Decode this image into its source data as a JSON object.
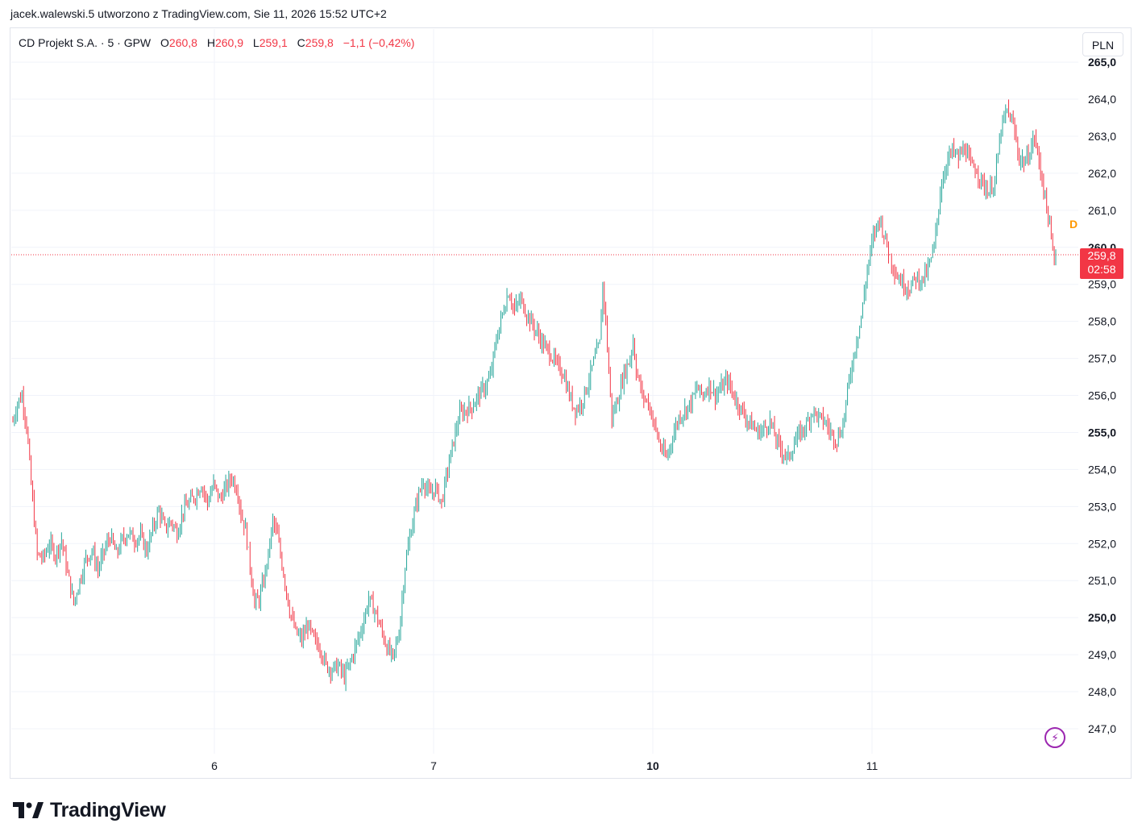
{
  "header": {
    "text": "jacek.walewski.5 utworzono z TradingView.com, Sie 11, 2026 15:52 UTC+2"
  },
  "legend": {
    "symbol": "CD Projekt S.A. · 5 · GPW",
    "open_label": "O",
    "open": "260,8",
    "high_label": "H",
    "high": "260,9",
    "low_label": "L",
    "low": "259,1",
    "close_label": "C",
    "close": "259,8",
    "change": "−1,1 (−0,42%)"
  },
  "currency_button": "PLN",
  "price_tag": {
    "price": "259,8",
    "countdown": "02:58"
  },
  "dividend_badge": "D",
  "brand": {
    "name": "TradingView"
  },
  "colors": {
    "up": "#26a69a",
    "down": "#f23645",
    "grid": "#f0f3fa",
    "text": "#131722",
    "accent_orange": "#ff9800",
    "accent_purple": "#9c27b0"
  },
  "chart_data": {
    "type": "ohlc",
    "interval": "5 min",
    "currency": "PLN",
    "x_ticks": [
      {
        "label": "6",
        "major": false
      },
      {
        "label": "7",
        "major": false
      },
      {
        "label": "10",
        "major": true
      },
      {
        "label": "11",
        "major": false
      }
    ],
    "y_ticks": [
      {
        "label": "247,0",
        "value": 247,
        "major": false
      },
      {
        "label": "248,0",
        "value": 248,
        "major": false
      },
      {
        "label": "249,0",
        "value": 249,
        "major": false
      },
      {
        "label": "250,0",
        "value": 250,
        "major": true
      },
      {
        "label": "251,0",
        "value": 251,
        "major": false
      },
      {
        "label": "252,0",
        "value": 252,
        "major": false
      },
      {
        "label": "253,0",
        "value": 253,
        "major": false
      },
      {
        "label": "254,0",
        "value": 254,
        "major": false
      },
      {
        "label": "255,0",
        "value": 255,
        "major": true
      },
      {
        "label": "256,0",
        "value": 256,
        "major": false
      },
      {
        "label": "257,0",
        "value": 257,
        "major": false
      },
      {
        "label": "258,0",
        "value": 258,
        "major": false
      },
      {
        "label": "259,0",
        "value": 259,
        "major": false
      },
      {
        "label": "260,0",
        "value": 260,
        "major": true
      },
      {
        "label": "261,0",
        "value": 261,
        "major": false
      },
      {
        "label": "262,0",
        "value": 262,
        "major": false
      },
      {
        "label": "263,0",
        "value": 263,
        "major": false
      },
      {
        "label": "264,0",
        "value": 264,
        "major": false
      },
      {
        "label": "265,0",
        "value": 265,
        "major": true
      }
    ],
    "y_range": [
      246.5,
      265.2
    ],
    "last_price": 259.8,
    "price_path": [
      [
        0,
        255.3
      ],
      [
        3,
        255.8
      ],
      [
        6,
        256.0
      ],
      [
        9,
        255.2
      ],
      [
        12,
        253.6
      ],
      [
        16,
        251.7
      ],
      [
        20,
        251.6
      ],
      [
        24,
        252.0
      ],
      [
        28,
        251.7
      ],
      [
        32,
        252.1
      ],
      [
        36,
        251.2
      ],
      [
        40,
        250.4
      ],
      [
        44,
        251.0
      ],
      [
        48,
        251.6
      ],
      [
        52,
        251.8
      ],
      [
        56,
        251.3
      ],
      [
        60,
        251.8
      ],
      [
        64,
        252.2
      ],
      [
        68,
        251.7
      ],
      [
        72,
        252.1
      ],
      [
        76,
        252.3
      ],
      [
        80,
        252.1
      ],
      [
        84,
        252.2
      ],
      [
        88,
        251.8
      ],
      [
        92,
        252.4
      ],
      [
        96,
        252.9
      ],
      [
        100,
        252.4
      ],
      [
        104,
        252.6
      ],
      [
        108,
        252.3
      ],
      [
        112,
        252.9
      ],
      [
        116,
        253.1
      ],
      [
        120,
        253.3
      ],
      [
        124,
        253.6
      ],
      [
        128,
        253.1
      ],
      [
        132,
        253.6
      ],
      [
        136,
        253.2
      ],
      [
        140,
        253.5
      ],
      [
        144,
        253.8
      ],
      [
        148,
        253.4
      ],
      [
        150,
        252.8
      ],
      [
        153,
        252.4
      ],
      [
        156,
        251.4
      ],
      [
        159,
        250.4
      ],
      [
        162,
        250.5
      ],
      [
        165,
        251.0
      ],
      [
        168,
        251.7
      ],
      [
        171,
        252.6
      ],
      [
        174,
        252.2
      ],
      [
        178,
        251.2
      ],
      [
        182,
        250.2
      ],
      [
        186,
        249.6
      ],
      [
        190,
        249.4
      ],
      [
        194,
        249.8
      ],
      [
        198,
        249.4
      ],
      [
        202,
        249.2
      ],
      [
        206,
        248.7
      ],
      [
        210,
        248.6
      ],
      [
        214,
        248.7
      ],
      [
        218,
        248.4
      ],
      [
        222,
        248.8
      ],
      [
        226,
        249.3
      ],
      [
        230,
        249.8
      ],
      [
        234,
        250.5
      ],
      [
        238,
        250.2
      ],
      [
        242,
        249.7
      ],
      [
        246,
        249.2
      ],
      [
        250,
        248.9
      ],
      [
        254,
        249.6
      ],
      [
        258,
        251.4
      ],
      [
        262,
        252.4
      ],
      [
        266,
        253.2
      ],
      [
        270,
        253.7
      ],
      [
        274,
        253.3
      ],
      [
        278,
        253.5
      ],
      [
        282,
        253.1
      ],
      [
        286,
        254.0
      ],
      [
        290,
        254.8
      ],
      [
        294,
        255.5
      ],
      [
        298,
        255.6
      ],
      [
        302,
        255.7
      ],
      [
        306,
        256.0
      ],
      [
        310,
        256.2
      ],
      [
        314,
        256.5
      ],
      [
        318,
        257.5
      ],
      [
        322,
        258.2
      ],
      [
        326,
        258.8
      ],
      [
        330,
        258.3
      ],
      [
        334,
        258.6
      ],
      [
        338,
        258.2
      ],
      [
        342,
        257.9
      ],
      [
        346,
        257.6
      ],
      [
        350,
        257.3
      ],
      [
        354,
        257.1
      ],
      [
        358,
        256.8
      ],
      [
        362,
        256.6
      ],
      [
        366,
        256.0
      ],
      [
        370,
        255.6
      ],
      [
        374,
        255.8
      ],
      [
        378,
        256.3
      ],
      [
        382,
        256.9
      ],
      [
        386,
        257.4
      ],
      [
        388,
        259.0
      ],
      [
        390,
        258.0
      ],
      [
        392,
        256.6
      ],
      [
        394,
        255.4
      ],
      [
        398,
        255.9
      ],
      [
        402,
        256.6
      ],
      [
        406,
        257.0
      ],
      [
        408,
        257.5
      ],
      [
        410,
        256.7
      ],
      [
        414,
        256.0
      ],
      [
        418,
        255.8
      ],
      [
        422,
        255.2
      ],
      [
        426,
        254.6
      ],
      [
        430,
        254.3
      ],
      [
        434,
        254.9
      ],
      [
        438,
        255.4
      ],
      [
        442,
        255.6
      ],
      [
        446,
        255.8
      ],
      [
        450,
        256.2
      ],
      [
        454,
        256.0
      ],
      [
        458,
        256.3
      ],
      [
        462,
        256.0
      ],
      [
        466,
        256.2
      ],
      [
        470,
        256.4
      ],
      [
        474,
        256.0
      ],
      [
        478,
        255.7
      ],
      [
        482,
        255.4
      ],
      [
        486,
        255.2
      ],
      [
        490,
        255.0
      ],
      [
        494,
        255.1
      ],
      [
        498,
        255.3
      ],
      [
        502,
        254.8
      ],
      [
        506,
        254.5
      ],
      [
        510,
        254.3
      ],
      [
        514,
        254.7
      ],
      [
        518,
        255.0
      ],
      [
        522,
        255.2
      ],
      [
        526,
        255.6
      ],
      [
        530,
        255.4
      ],
      [
        534,
        255.3
      ],
      [
        538,
        255.0
      ],
      [
        542,
        254.8
      ],
      [
        546,
        255.2
      ],
      [
        550,
        256.4
      ],
      [
        554,
        257.3
      ],
      [
        558,
        258.1
      ],
      [
        562,
        259.4
      ],
      [
        566,
        260.3
      ],
      [
        570,
        260.8
      ],
      [
        574,
        260.2
      ],
      [
        578,
        259.6
      ],
      [
        582,
        259.2
      ],
      [
        586,
        259.0
      ],
      [
        590,
        258.9
      ],
      [
        594,
        259.2
      ],
      [
        598,
        259.1
      ],
      [
        602,
        259.4
      ],
      [
        606,
        260.0
      ],
      [
        610,
        261.5
      ],
      [
        614,
        262.3
      ],
      [
        618,
        262.6
      ],
      [
        622,
        262.4
      ],
      [
        626,
        262.7
      ],
      [
        630,
        262.2
      ],
      [
        634,
        262.1
      ],
      [
        638,
        261.7
      ],
      [
        642,
        261.5
      ],
      [
        646,
        261.8
      ],
      [
        650,
        263.2
      ],
      [
        654,
        263.7
      ],
      [
        658,
        263.3
      ],
      [
        662,
        262.4
      ],
      [
        666,
        262.3
      ],
      [
        670,
        262.7
      ],
      [
        672,
        263.0
      ],
      [
        675,
        262.3
      ],
      [
        678,
        261.6
      ],
      [
        681,
        260.8
      ],
      [
        684,
        259.9
      ],
      [
        686,
        259.5
      ]
    ]
  }
}
